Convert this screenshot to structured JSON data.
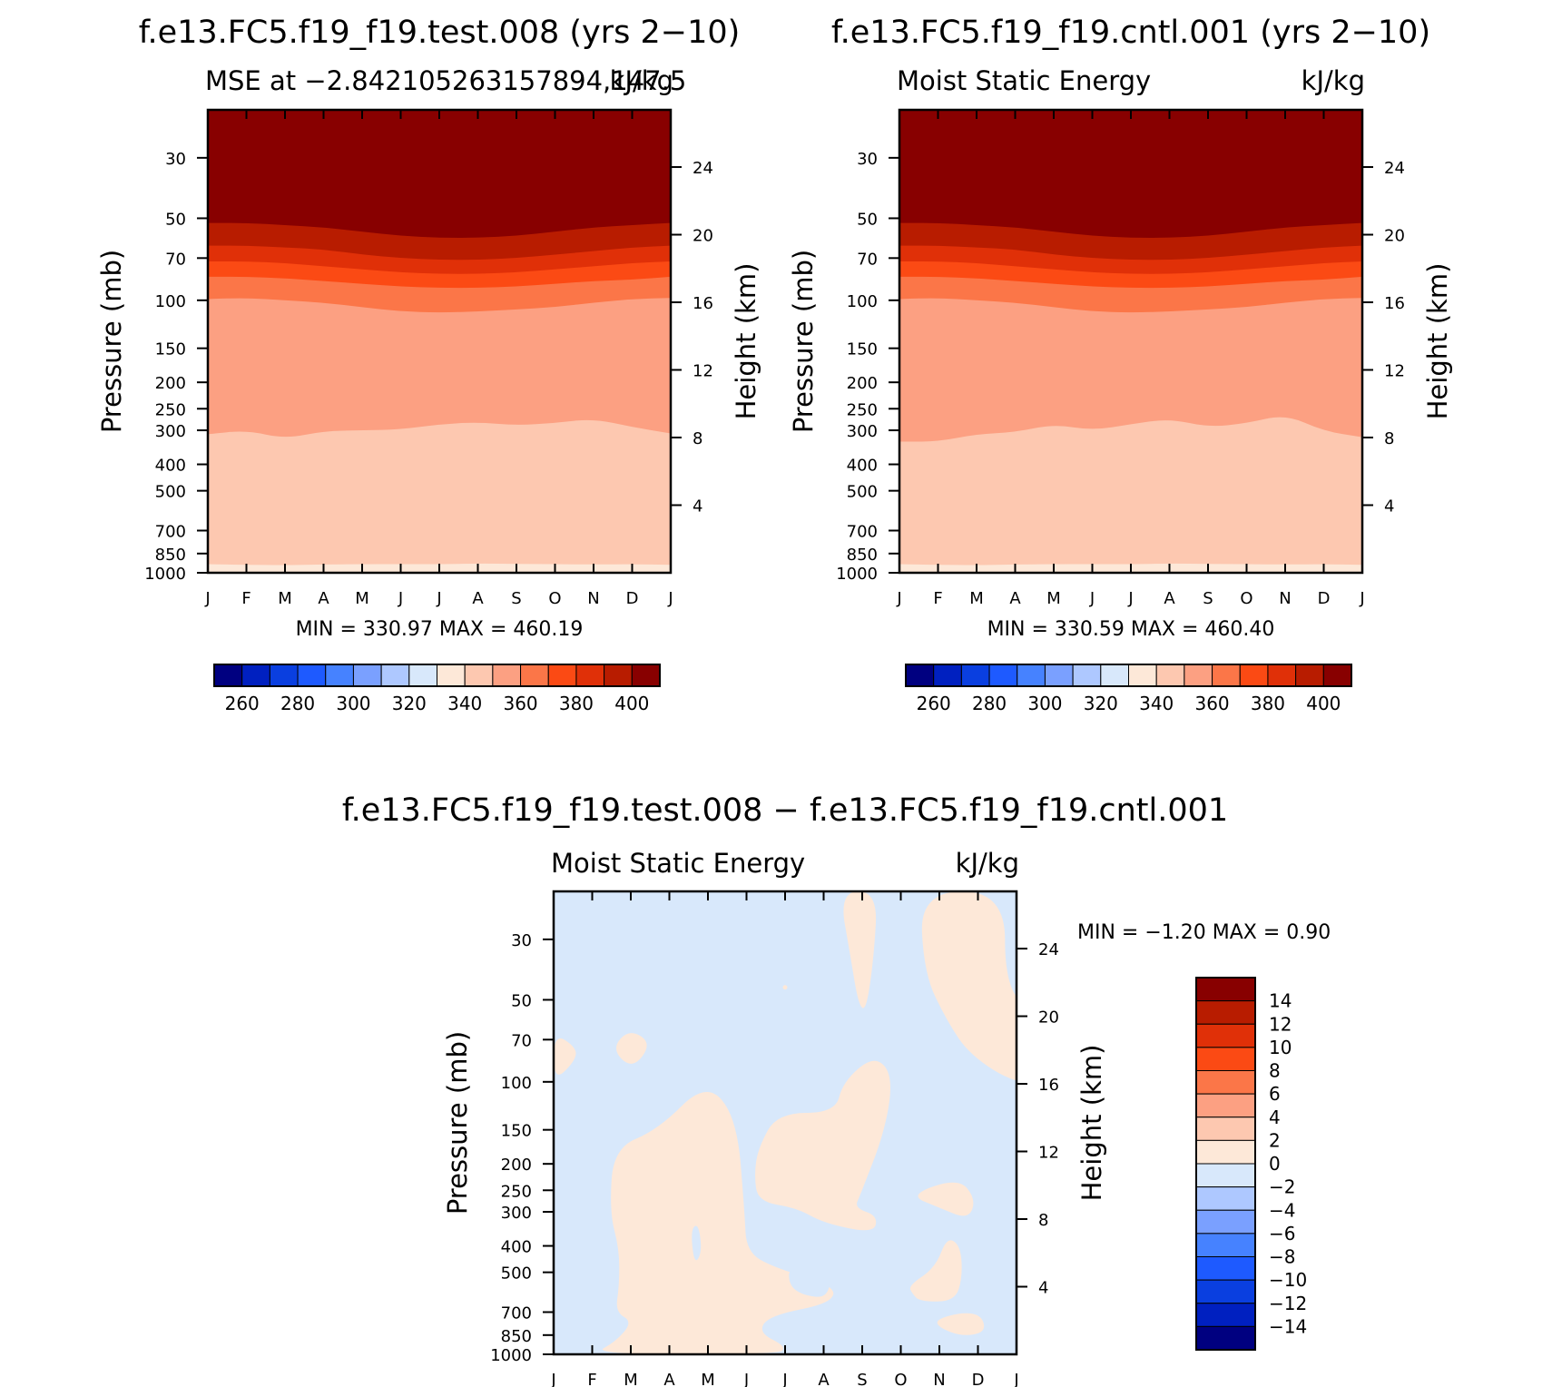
{
  "palette": [
    "#000080",
    "#0020c0",
    "#0a3fe0",
    "#1e5aff",
    "#4682ff",
    "#7aa0ff",
    "#aec8ff",
    "#d8e8fb",
    "#fde8d8",
    "#fdc8b0",
    "#fca082",
    "#fb7648",
    "#fb4a14",
    "#e03008",
    "#b81c00",
    "#880000"
  ],
  "chart_data": [
    {
      "id": "test",
      "type": "heatmap",
      "title": "f.e13.FC5.f19_f19.test.008 (yrs 2−10)",
      "subtitle_left": "MSE at −2.842105263157894,147.5",
      "subtitle_right": "kJ/kg",
      "xlabel": "",
      "ylabel": "Pressure (mb)",
      "ylabel_right": "Height (km)",
      "months": [
        "J",
        "F",
        "M",
        "A",
        "M",
        "J",
        "J",
        "A",
        "S",
        "O",
        "N",
        "D",
        "J"
      ],
      "pressure_ticks": [
        "30",
        "50",
        "70",
        "100",
        "150",
        "200",
        "250",
        "300",
        "400",
        "500",
        "700",
        "850",
        "1000"
      ],
      "height_ticks": [
        "24",
        "20",
        "16",
        "12",
        "8",
        "4"
      ],
      "ylim_mb": [
        20,
        1000
      ],
      "min_max": "MIN =  330.97  MAX =  460.19",
      "colorbar_labels": [
        "260",
        "280",
        "300",
        "320",
        "340",
        "360",
        "380",
        "400"
      ],
      "contour_boundaries_mb": [
        {
          "level": 340,
          "p": [
            930,
            935,
            938,
            932,
            930,
            930,
            930,
            925,
            928,
            930,
            932,
            930,
            935
          ]
        },
        {
          "level": 350,
          "p": [
            310,
            300,
            322,
            302,
            300,
            298,
            285,
            280,
            288,
            282,
            272,
            292,
            308
          ]
        },
        {
          "level": 360,
          "p": [
            99,
            98,
            100,
            102,
            106,
            110,
            111,
            110,
            108,
            106,
            102,
            99,
            98
          ]
        },
        {
          "level": 370,
          "p": [
            82,
            82,
            83,
            85,
            87,
            89,
            90,
            90,
            89,
            87,
            85,
            84,
            82
          ]
        },
        {
          "level": 380,
          "p": [
            72,
            72,
            73,
            75,
            77,
            79,
            80,
            80,
            79,
            77,
            75,
            73,
            72
          ]
        },
        {
          "level": 390,
          "p": [
            63,
            63,
            64,
            65,
            68,
            70,
            71,
            71,
            70,
            68,
            66,
            64,
            63
          ]
        },
        {
          "level": 400,
          "p": [
            52,
            52,
            53,
            54,
            56,
            58,
            59,
            59,
            58,
            56,
            54,
            53,
            52
          ]
        }
      ]
    },
    {
      "id": "cntl",
      "type": "heatmap",
      "title": "f.e13.FC5.f19_f19.cntl.001 (yrs 2−10)",
      "subtitle_left": "Moist Static Energy",
      "subtitle_right": "kJ/kg",
      "xlabel": "",
      "ylabel": "Pressure (mb)",
      "ylabel_right": "Height (km)",
      "months": [
        "J",
        "F",
        "M",
        "A",
        "M",
        "J",
        "J",
        "A",
        "S",
        "O",
        "N",
        "D",
        "J"
      ],
      "pressure_ticks": [
        "30",
        "50",
        "70",
        "100",
        "150",
        "200",
        "250",
        "300",
        "400",
        "500",
        "700",
        "850",
        "1000"
      ],
      "height_ticks": [
        "24",
        "20",
        "16",
        "12",
        "8",
        "4"
      ],
      "ylim_mb": [
        20,
        1000
      ],
      "min_max": "MIN =  330.59  MAX =  460.40",
      "colorbar_labels": [
        "260",
        "280",
        "300",
        "320",
        "340",
        "360",
        "380",
        "400"
      ],
      "contour_boundaries_mb": [
        {
          "level": 340,
          "p": [
            930,
            935,
            938,
            932,
            930,
            930,
            930,
            925,
            928,
            930,
            932,
            930,
            935
          ]
        },
        {
          "level": 350,
          "p": [
            330,
            330,
            310,
            305,
            285,
            300,
            285,
            272,
            292,
            283,
            262,
            302,
            318
          ]
        },
        {
          "level": 360,
          "p": [
            99,
            98,
            100,
            102,
            106,
            110,
            111,
            110,
            108,
            106,
            102,
            99,
            98
          ]
        },
        {
          "level": 370,
          "p": [
            82,
            82,
            83,
            85,
            87,
            89,
            90,
            90,
            89,
            87,
            85,
            84,
            82
          ]
        },
        {
          "level": 380,
          "p": [
            72,
            72,
            73,
            75,
            77,
            79,
            80,
            80,
            79,
            77,
            75,
            73,
            72
          ]
        },
        {
          "level": 390,
          "p": [
            63,
            63,
            64,
            65,
            68,
            70,
            71,
            71,
            70,
            68,
            66,
            64,
            63
          ]
        },
        {
          "level": 400,
          "p": [
            52,
            52,
            53,
            54,
            56,
            58,
            59,
            59,
            58,
            56,
            54,
            53,
            52
          ]
        }
      ]
    },
    {
      "id": "diff",
      "type": "heatmap",
      "title": "f.e13.FC5.f19_f19.test.008 − f.e13.FC5.f19_f19.cntl.001",
      "subtitle_left": "Moist Static Energy",
      "subtitle_right": "kJ/kg",
      "xlabel": "",
      "ylabel": "Pressure (mb)",
      "ylabel_right": "Height (km)",
      "months": [
        "J",
        "F",
        "M",
        "A",
        "M",
        "J",
        "J",
        "A",
        "S",
        "O",
        "N",
        "D",
        "J"
      ],
      "pressure_ticks": [
        "30",
        "50",
        "70",
        "100",
        "150",
        "200",
        "250",
        "300",
        "400",
        "500",
        "700",
        "850",
        "1000"
      ],
      "height_ticks": [
        "24",
        "20",
        "16",
        "12",
        "8",
        "4"
      ],
      "ylim_mb": [
        20,
        1000
      ],
      "min_max": "MIN =   −1.20  MAX =    0.90",
      "background_interval": "-2 to 0",
      "colorbar_labels": [
        "14",
        "12",
        "10",
        "8",
        "6",
        "4",
        "2",
        "0",
        "−2",
        "−4",
        "−6",
        "−8",
        "−10",
        "−12",
        "−14"
      ],
      "positive_regions": [
        {
          "name": "diff-region-upper-sept",
          "points": [
            [
              7.4,
              20
            ],
            [
              8.4,
              20
            ],
            [
              8.3,
              35
            ],
            [
              8.1,
              55
            ],
            [
              7.9,
              52
            ],
            [
              7.7,
              35
            ]
          ]
        },
        {
          "name": "diff-region-upper-right",
          "points": [
            [
              9.5,
              20
            ],
            [
              11.7,
              20
            ],
            [
              11.7,
              45
            ],
            [
              12.5,
              57
            ],
            [
              13,
              65
            ],
            [
              13,
              100
            ],
            [
              12,
              102
            ],
            [
              10.8,
              80
            ],
            [
              10.2,
              60
            ],
            [
              9.6,
              40
            ]
          ]
        },
        {
          "name": "diff-region-left-edge",
          "points": [
            [
              0,
              66
            ],
            [
              0.6,
              75
            ],
            [
              0.55,
              84
            ],
            [
              0,
              100
            ]
          ]
        },
        {
          "name": "diff-region-feb-blob",
          "points": [
            [
              1.5,
              76
            ],
            [
              1.95,
              64
            ],
            [
              2.55,
              72
            ],
            [
              2.05,
              90
            ]
          ]
        },
        {
          "name": "diff-region-mid-left",
          "points": [
            [
              1.55,
              175
            ],
            [
              2.7,
              150
            ],
            [
              3.95,
              100
            ],
            [
              4.75,
              135
            ],
            [
              4.95,
              300
            ],
            [
              5.0,
              420
            ],
            [
              5.7,
              480
            ],
            [
              7.3,
              560
            ],
            [
              7.2,
              650
            ],
            [
              5.6,
              720
            ],
            [
              5.3,
              830
            ],
            [
              6.05,
              940
            ],
            [
              5.8,
              1000
            ],
            [
              1.0,
              1000
            ],
            [
              1.6,
              900
            ],
            [
              2.05,
              760
            ],
            [
              1.6,
              700
            ],
            [
              1.7,
              560
            ],
            [
              1.7,
              410
            ],
            [
              1.45,
              300
            ]
          ]
        },
        {
          "name": "diff-region-mid-right",
          "points": [
            [
              5.3,
              175
            ],
            [
              5.8,
              130
            ],
            [
              7.3,
              130
            ],
            [
              7.5,
              100
            ],
            [
              8.3,
              80
            ],
            [
              8.8,
              94
            ],
            [
              8.6,
              150
            ],
            [
              7.95,
              260
            ],
            [
              7.8,
              290
            ],
            [
              8.4,
              310
            ],
            [
              8.3,
              360
            ],
            [
              7.0,
              330
            ],
            [
              6.3,
              290
            ],
            [
              5.3,
              275
            ],
            [
              5.2,
              220
            ]
          ]
        },
        {
          "name": "diff-region-oct-upper",
          "points": [
            [
              9.2,
              260
            ],
            [
              10.5,
              225
            ],
            [
              10.95,
              270
            ],
            [
              10.75,
              320
            ],
            [
              10.0,
              290
            ]
          ]
        },
        {
          "name": "diff-region-oct-lower",
          "points": [
            [
              9.2,
              560
            ],
            [
              9.9,
              480
            ],
            [
              10.2,
              370
            ],
            [
              10.55,
              400
            ],
            [
              10.6,
              520
            ],
            [
              10.4,
              640
            ],
            [
              9.5,
              640
            ],
            [
              9.3,
              600
            ]
          ]
        },
        {
          "name": "diff-region-nov-small",
          "points": [
            [
              9.9,
              745
            ],
            [
              10.6,
              700
            ],
            [
              11.1,
              720
            ],
            [
              11.2,
              830
            ],
            [
              10.6,
              860
            ],
            [
              10.0,
              800
            ]
          ]
        }
      ],
      "negative_islands": [
        {
          "name": "diff-island-apr",
          "points": [
            [
              3.55,
              350
            ],
            [
              3.75,
              330
            ],
            [
              3.85,
              420
            ],
            [
              3.65,
              470
            ]
          ]
        },
        {
          "name": "diff-island-jul",
          "points": [
            [
              6.1,
              470
            ],
            [
              7.2,
              500
            ],
            [
              7.1,
              620
            ],
            [
              6.5,
              610
            ],
            [
              6.1,
              560
            ]
          ]
        }
      ]
    }
  ]
}
